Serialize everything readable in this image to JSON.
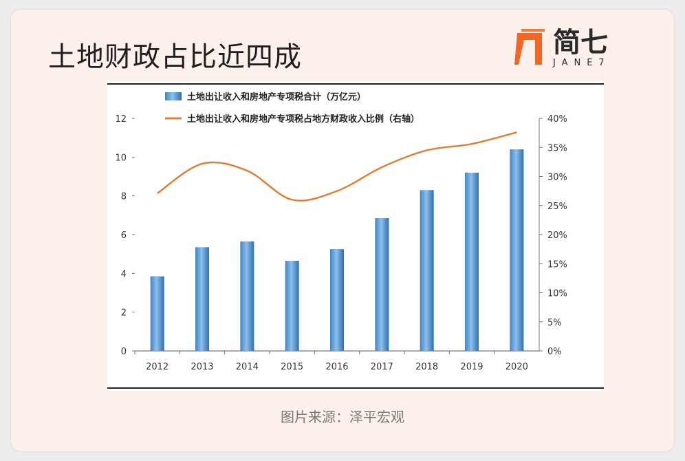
{
  "header": {
    "title": "土地财政占比近四成",
    "logo_text": "简七",
    "logo_sub": "JANE7",
    "logo_color": "#f26522"
  },
  "source": "图片来源：泽平宏观",
  "chart_data": {
    "type": "bar",
    "categories": [
      "2012",
      "2013",
      "2014",
      "2015",
      "2016",
      "2017",
      "2018",
      "2019",
      "2020"
    ],
    "series": [
      {
        "name": "土地出让收入和房地产专项税合计（万亿元）",
        "type": "bar",
        "axis": "left",
        "values": [
          3.85,
          5.35,
          5.65,
          4.65,
          5.25,
          6.85,
          8.3,
          9.2,
          10.4
        ],
        "color": "#3f86c8"
      },
      {
        "name": "土地出让收入和房地产专项税占地方财政收入比例（右轴）",
        "type": "line",
        "axis": "right",
        "values": [
          27.1,
          32.2,
          31.0,
          26.0,
          27.5,
          31.6,
          34.5,
          35.6,
          37.6
        ],
        "color": "#e07f36"
      }
    ],
    "left_axis": {
      "ylim": [
        0,
        12
      ],
      "ticks": [
        "0",
        "2",
        "4",
        "6",
        "8",
        "10",
        "12"
      ]
    },
    "right_axis": {
      "ylim": [
        0,
        40
      ],
      "ticks": [
        "0%",
        "5%",
        "10%",
        "15%",
        "20%",
        "25%",
        "30%",
        "35%",
        "40%"
      ]
    },
    "legend_position": "top",
    "grid": false
  }
}
